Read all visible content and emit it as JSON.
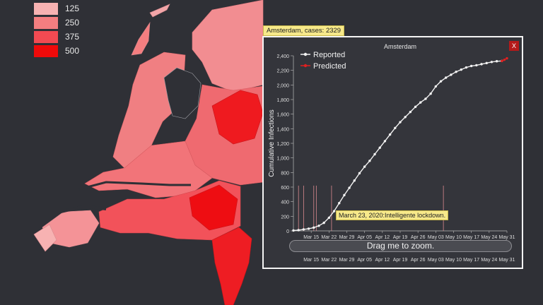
{
  "legend": [
    {
      "label": "125",
      "color": "#f7b2b2"
    },
    {
      "label": "250",
      "color": "#f47e80"
    },
    {
      "label": "375",
      "color": "#f24a52"
    },
    {
      "label": "500",
      "color": "#ef0a0a"
    }
  ],
  "tooltip": {
    "text": "Amsterdam, cases: 2329"
  },
  "popup": {
    "close_label": "X",
    "annotation": "March 23, 2020:Intelligente lockdown.",
    "scrubber_label": "Drag me to zoom."
  },
  "chart_data": {
    "type": "line",
    "title": "Amsterdam",
    "ylabel": "Cumulative Infections",
    "xlabel": "",
    "ylim": [
      0,
      2400
    ],
    "yticks": [
      "0",
      "200",
      "400",
      "600",
      "800",
      "1,000",
      "1,200",
      "1,400",
      "1,600",
      "1,800",
      "2,000",
      "2,200",
      "2,400"
    ],
    "xticks": [
      "Mar 15",
      "Mar 22",
      "Mar 29",
      "Apr 05",
      "Apr 12",
      "Apr 19",
      "Apr 26",
      "May 03",
      "May 10",
      "May 17",
      "May 24",
      "May 31"
    ],
    "legend": [
      {
        "name": "Reported",
        "color": "#f2f2f2"
      },
      {
        "name": "Predicted",
        "color": "#e02020"
      }
    ],
    "series": [
      {
        "name": "Reported",
        "x": [
          "2020-03-08",
          "2020-03-10",
          "2020-03-12",
          "2020-03-14",
          "2020-03-16",
          "2020-03-18",
          "2020-03-20",
          "2020-03-22",
          "2020-03-24",
          "2020-03-26",
          "2020-03-28",
          "2020-03-30",
          "2020-04-01",
          "2020-04-03",
          "2020-04-05",
          "2020-04-07",
          "2020-04-09",
          "2020-04-11",
          "2020-04-13",
          "2020-04-15",
          "2020-04-17",
          "2020-04-19",
          "2020-04-21",
          "2020-04-23",
          "2020-04-25",
          "2020-04-27",
          "2020-04-29",
          "2020-05-01",
          "2020-05-03",
          "2020-05-05",
          "2020-05-07",
          "2020-05-09",
          "2020-05-11",
          "2020-05-13",
          "2020-05-15",
          "2020-05-17",
          "2020-05-19",
          "2020-05-21",
          "2020-05-23",
          "2020-05-25",
          "2020-05-27",
          "2020-05-29"
        ],
        "values": [
          5,
          10,
          20,
          30,
          45,
          70,
          110,
          180,
          270,
          380,
          490,
          590,
          690,
          790,
          880,
          960,
          1050,
          1140,
          1230,
          1320,
          1410,
          1490,
          1560,
          1630,
          1700,
          1760,
          1810,
          1880,
          1980,
          2050,
          2100,
          2140,
          2180,
          2210,
          2240,
          2260,
          2270,
          2285,
          2300,
          2315,
          2325,
          2329
        ]
      },
      {
        "name": "Predicted",
        "x": [
          "2020-05-29",
          "2020-05-30",
          "2020-05-31"
        ],
        "values": [
          2329,
          2345,
          2365
        ]
      }
    ],
    "event_lines": [
      "2020-03-10",
      "2020-03-12",
      "2020-03-16",
      "2020-03-17",
      "2020-03-23",
      "2020-05-06"
    ]
  }
}
